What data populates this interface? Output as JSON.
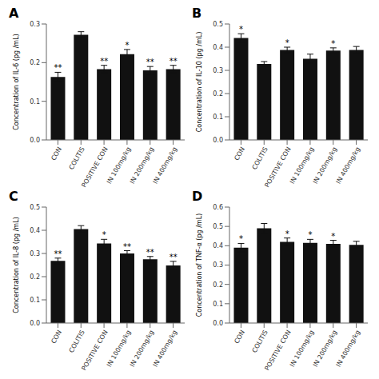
{
  "chart_data": [
    {
      "type": "bar",
      "title": "A",
      "ylabel": "Concentration of IL-6 (pg /mL)",
      "categories": [
        "CON",
        "COLITIS",
        "POSITIVE CON",
        "IN 100mg/kg",
        "IN 200mg/kg",
        "IN 400mg/kg"
      ],
      "values": [
        0.163,
        0.272,
        0.183,
        0.222,
        0.18,
        0.183
      ],
      "errors": [
        0.012,
        0.008,
        0.01,
        0.012,
        0.01,
        0.01
      ],
      "annotations": [
        {
          "x": "CON",
          "text": "**"
        },
        {
          "x": "POSITIVE CON",
          "text": "**"
        },
        {
          "x": "IN 100mg/kg",
          "text": "*"
        },
        {
          "x": "IN 200mg/kg",
          "text": "**"
        },
        {
          "x": "IN 400mg/kg",
          "text": "**"
        }
      ],
      "color": "#111111",
      "grid": false,
      "ylim": [
        0,
        0.3
      ],
      "yticks": [
        {
          "value": 0.0,
          "label": "0.0"
        },
        0.1,
        0.2,
        0.3
      ]
    },
    {
      "type": "bar",
      "title": "B",
      "ylabel": "Concentration of IL-10 (pg /mL)",
      "categories": [
        "CON",
        "COLITIS",
        "POSITIVE CON",
        "IN 100mg/kg",
        "IN 200mg/kg",
        "IN 400mg/kg"
      ],
      "values": [
        0.44,
        0.328,
        0.388,
        0.35,
        0.385,
        0.388
      ],
      "errors": [
        0.018,
        0.01,
        0.012,
        0.02,
        0.012,
        0.015
      ],
      "annotations": [
        {
          "x": "CON",
          "text": "*"
        },
        {
          "x": "POSITIVE CON",
          "text": "*"
        },
        {
          "x": "IN 200mg/kg",
          "text": "*"
        }
      ],
      "color": "#111111",
      "grid": false,
      "ylim": [
        0,
        0.5
      ],
      "yticks": [
        {
          "value": 0.0,
          "label": "0.0"
        },
        0.1,
        0.2,
        0.3,
        0.4,
        0.5
      ]
    },
    {
      "type": "bar",
      "title": "C",
      "ylabel": "Concentration of IL-8 (pg /mL)",
      "categories": [
        "CON",
        "COLITIS",
        "POSITIVE CON",
        "IN 100mg/kg",
        "IN 200mg/kg",
        "IN 400mg/kg"
      ],
      "values": [
        0.268,
        0.405,
        0.343,
        0.3,
        0.275,
        0.248
      ],
      "errors": [
        0.012,
        0.015,
        0.018,
        0.012,
        0.012,
        0.018
      ],
      "annotations": [
        {
          "x": "CON",
          "text": "**"
        },
        {
          "x": "POSITIVE CON",
          "text": "*"
        },
        {
          "x": "IN 100mg/kg",
          "text": "**"
        },
        {
          "x": "IN 200mg/kg",
          "text": "**"
        },
        {
          "x": "IN 400mg/kg",
          "text": "**"
        }
      ],
      "color": "#111111",
      "grid": false,
      "ylim": [
        0,
        0.5
      ],
      "yticks": [
        {
          "value": 0.0,
          "label": "0.0"
        },
        0.1,
        0.2,
        0.3,
        0.4,
        0.5
      ]
    },
    {
      "type": "bar",
      "title": "D",
      "ylabel": "Concentration of TNF-α (pg /mL)",
      "categories": [
        "CON",
        "COLITIS",
        "POSITIVE CON",
        "IN 100mg/kg",
        "IN 200mg/kg",
        "IN 400mg/kg"
      ],
      "values": [
        0.39,
        0.49,
        0.42,
        0.415,
        0.41,
        0.405
      ],
      "errors": [
        0.022,
        0.025,
        0.02,
        0.018,
        0.018,
        0.018
      ],
      "annotations": [
        {
          "x": "CON",
          "text": "*"
        },
        {
          "x": "POSITIVE CON",
          "text": "*"
        },
        {
          "x": "IN 100mg/kg",
          "text": "*"
        },
        {
          "x": "IN 200mg/kg",
          "text": "*"
        }
      ],
      "color": "#111111",
      "grid": false,
      "ylim": [
        0,
        0.6
      ],
      "yticks": [
        {
          "value": 0.0,
          "label": "0.0"
        },
        0.1,
        0.2,
        0.3,
        0.4,
        0.5,
        0.6
      ]
    }
  ]
}
